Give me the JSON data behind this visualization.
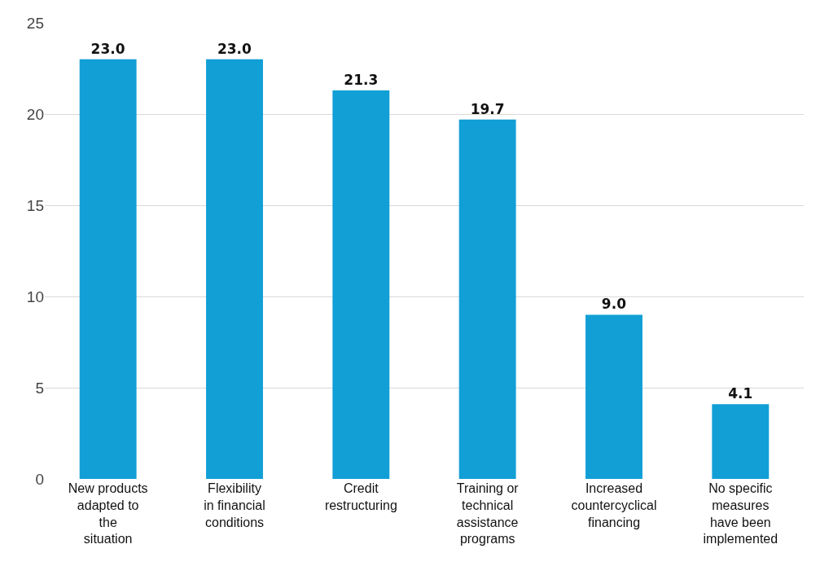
{
  "chart_data": {
    "type": "bar",
    "categories": [
      "New products adapted to the situation",
      "Flexibility in financial conditions",
      "Credit restructuring",
      "Training or technical assistance programs",
      "Increased countercyclical financing",
      "No specific measures have been implemented"
    ],
    "values": [
      23.0,
      23.0,
      21.3,
      19.7,
      9.0,
      4.1
    ],
    "color": "#119fd6",
    "value_labels": [
      "23.0",
      "23.0",
      "21.3",
      "19.7",
      "9.0",
      "4.1"
    ],
    "ylim": [
      0,
      25
    ],
    "yticks": [
      0,
      5,
      10,
      15,
      20,
      25
    ],
    "grid": "y"
  }
}
